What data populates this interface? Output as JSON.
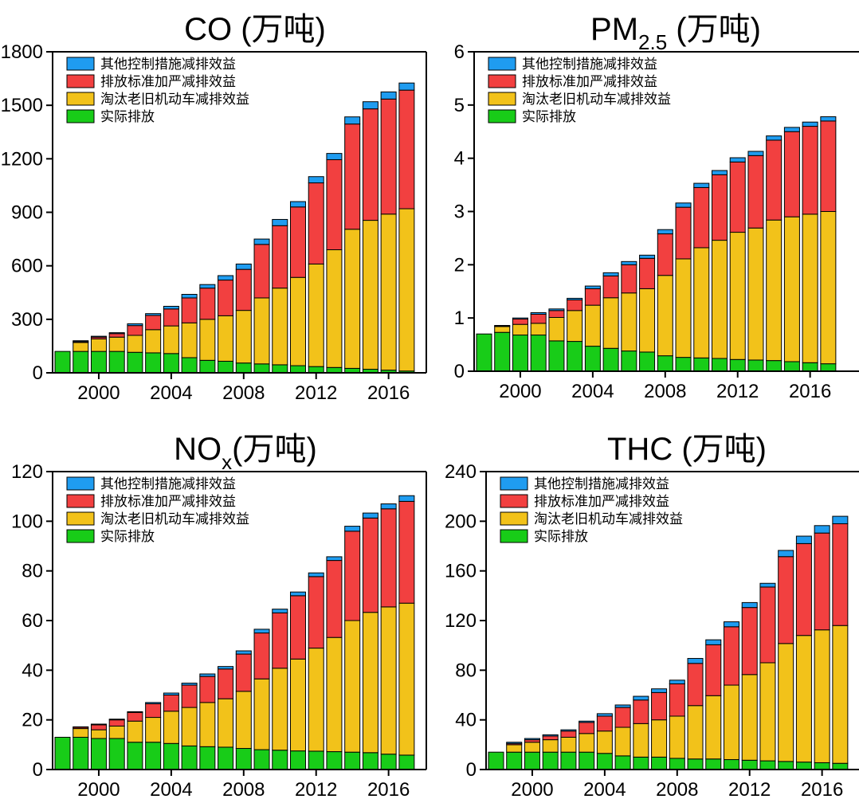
{
  "colors": {
    "other_measures": "#1f9cf0",
    "standards": "#f24040",
    "retire_old": "#f2c21a",
    "actual": "#18cc18"
  },
  "legend": [
    {
      "key": "other_measures",
      "label": "其他控制措施减排效益"
    },
    {
      "key": "standards",
      "label": "排放标准加严减排效益"
    },
    {
      "key": "retire_old",
      "label": "淘汰老旧机动车减排效益"
    },
    {
      "key": "actual",
      "label": "实际排放"
    }
  ],
  "chart_data": [
    {
      "type": "bar",
      "stacked": true,
      "title": {
        "main": "CO",
        "sub": "",
        "suffix": " (万吨)"
      },
      "x": [
        1998,
        1999,
        2000,
        2001,
        2002,
        2003,
        2004,
        2005,
        2006,
        2007,
        2008,
        2009,
        2010,
        2011,
        2012,
        2013,
        2014,
        2015,
        2016,
        2017
      ],
      "xticks": [
        2000,
        2004,
        2008,
        2012,
        2016
      ],
      "ylim": [
        0,
        1800
      ],
      "yticks": [
        0,
        300,
        600,
        900,
        1200,
        1500,
        1800
      ],
      "series": [
        {
          "key": "actual",
          "name": "实际排放",
          "values": [
            120,
            120,
            120,
            120,
            115,
            112,
            108,
            85,
            70,
            65,
            55,
            50,
            45,
            40,
            35,
            30,
            25,
            20,
            15,
            10
          ]
        },
        {
          "key": "retire_old",
          "name": "淘汰老旧机动车减排效益",
          "values": [
            0,
            50,
            70,
            80,
            95,
            130,
            155,
            195,
            230,
            255,
            295,
            370,
            430,
            495,
            575,
            660,
            780,
            835,
            875,
            910
          ]
        },
        {
          "key": "standards",
          "name": "排放标准加严减排效益",
          "values": [
            0,
            5,
            10,
            20,
            55,
            80,
            95,
            140,
            175,
            200,
            230,
            300,
            350,
            395,
            455,
            505,
            590,
            625,
            645,
            665
          ]
        },
        {
          "key": "other_measures",
          "name": "其他控制措施减排效益",
          "values": [
            0,
            5,
            5,
            5,
            10,
            10,
            15,
            20,
            20,
            25,
            30,
            30,
            35,
            30,
            35,
            35,
            40,
            40,
            40,
            40
          ]
        }
      ]
    },
    {
      "type": "bar",
      "stacked": true,
      "title": {
        "main": "PM",
        "sub": "2.5",
        "suffix": " (万吨)"
      },
      "x": [
        1998,
        1999,
        2000,
        2001,
        2002,
        2003,
        2004,
        2005,
        2006,
        2007,
        2008,
        2009,
        2010,
        2011,
        2012,
        2013,
        2014,
        2015,
        2016,
        2017
      ],
      "xticks": [
        2000,
        2004,
        2008,
        2012,
        2016
      ],
      "ylim": [
        0,
        6
      ],
      "yticks": [
        0,
        1,
        2,
        3,
        4,
        5,
        6
      ],
      "series": [
        {
          "key": "actual",
          "name": "实际排放",
          "values": [
            0.7,
            0.73,
            0.68,
            0.68,
            0.57,
            0.56,
            0.47,
            0.43,
            0.38,
            0.36,
            0.29,
            0.26,
            0.25,
            0.24,
            0.22,
            0.21,
            0.2,
            0.18,
            0.16,
            0.14
          ]
        },
        {
          "key": "retire_old",
          "name": "淘汰老旧机动车减排效益",
          "values": [
            0,
            0.11,
            0.2,
            0.22,
            0.44,
            0.58,
            0.77,
            0.95,
            1.09,
            1.19,
            1.51,
            1.85,
            2.07,
            2.22,
            2.39,
            2.48,
            2.64,
            2.72,
            2.79,
            2.86
          ]
        },
        {
          "key": "standards",
          "name": "排放标准加严减排效益",
          "values": [
            0,
            0.01,
            0.1,
            0.17,
            0.13,
            0.2,
            0.31,
            0.41,
            0.53,
            0.57,
            0.78,
            0.97,
            1.13,
            1.23,
            1.32,
            1.36,
            1.5,
            1.6,
            1.65,
            1.7
          ]
        },
        {
          "key": "other_measures",
          "name": "其他控制措施减排效益",
          "values": [
            0,
            0.01,
            0.02,
            0.03,
            0.03,
            0.03,
            0.05,
            0.06,
            0.06,
            0.06,
            0.08,
            0.08,
            0.08,
            0.08,
            0.08,
            0.08,
            0.08,
            0.08,
            0.08,
            0.08
          ]
        }
      ]
    },
    {
      "type": "bar",
      "stacked": true,
      "title": {
        "main": "NO",
        "sub": "x",
        "suffix": "(万吨)"
      },
      "x": [
        1998,
        1999,
        2000,
        2001,
        2002,
        2003,
        2004,
        2005,
        2006,
        2007,
        2008,
        2009,
        2010,
        2011,
        2012,
        2013,
        2014,
        2015,
        2016,
        2017
      ],
      "xticks": [
        2000,
        2004,
        2008,
        2012,
        2016
      ],
      "ylim": [
        0,
        120
      ],
      "yticks": [
        0,
        20,
        40,
        60,
        80,
        100,
        120
      ],
      "series": [
        {
          "key": "actual",
          "name": "实际排放",
          "values": [
            13,
            13,
            12.5,
            12.5,
            11,
            11,
            10.5,
            9.5,
            9.2,
            9,
            8.5,
            8,
            7.8,
            7.5,
            7.4,
            7.2,
            7,
            6.8,
            6.2,
            5.8
          ]
        },
        {
          "key": "retire_old",
          "name": "淘汰老旧机动车减排效益",
          "values": [
            0,
            3.5,
            3.5,
            5,
            8.5,
            10,
            13,
            15.5,
            17.8,
            19.5,
            23,
            28.5,
            33,
            37,
            41.5,
            46,
            53,
            56.5,
            59.3,
            61.2
          ]
        },
        {
          "key": "standards",
          "name": "排放标准加严减排效益",
          "values": [
            0,
            0.5,
            2,
            2.5,
            3.5,
            5.5,
            6.5,
            9,
            10.5,
            12,
            15,
            18.5,
            22.3,
            25.5,
            28.8,
            31,
            36,
            38,
            39.5,
            41
          ]
        },
        {
          "key": "other_measures",
          "name": "其他控制措施减排效益",
          "values": [
            0,
            0.2,
            0.3,
            0.3,
            0.3,
            0.5,
            0.8,
            0.8,
            1,
            1,
            1.3,
            1.5,
            1.5,
            1.5,
            1.5,
            1.5,
            2,
            2,
            2,
            2.3
          ]
        }
      ]
    },
    {
      "type": "bar",
      "stacked": true,
      "title": {
        "main": "THC",
        "sub": "",
        "suffix": " (万吨)"
      },
      "x": [
        1998,
        1999,
        2000,
        2001,
        2002,
        2003,
        2004,
        2005,
        2006,
        2007,
        2008,
        2009,
        2010,
        2011,
        2012,
        2013,
        2014,
        2015,
        2016,
        2017
      ],
      "xticks": [
        2000,
        2004,
        2008,
        2012,
        2016
      ],
      "ylim": [
        0,
        240
      ],
      "yticks": [
        0,
        40,
        80,
        120,
        160,
        200,
        240
      ],
      "series": [
        {
          "key": "actual",
          "name": "实际排放",
          "values": [
            14,
            14,
            14,
            14,
            14,
            14,
            13,
            11,
            10,
            10,
            9,
            8.5,
            8.5,
            8,
            7.5,
            7,
            6.5,
            6,
            5.5,
            5
          ]
        },
        {
          "key": "retire_old",
          "name": "淘汰老旧机动车减排效益",
          "values": [
            0,
            6,
            8,
            10,
            12,
            15,
            18,
            23,
            27,
            30,
            34,
            43,
            51,
            60,
            69,
            79,
            95,
            102,
            107,
            111
          ]
        },
        {
          "key": "standards",
          "name": "排放标准加严减排效益",
          "values": [
            0,
            1,
            2,
            3,
            5,
            9,
            12,
            16,
            19,
            22,
            26,
            34,
            41,
            47,
            54,
            61,
            70,
            74,
            78,
            82
          ]
        },
        {
          "key": "other_measures",
          "name": "其他控制措施减排效益",
          "values": [
            0,
            1,
            1,
            1,
            1,
            1,
            2,
            2,
            3,
            3,
            3,
            4,
            4,
            4,
            4,
            3,
            5,
            6,
            6,
            6
          ]
        }
      ]
    }
  ]
}
